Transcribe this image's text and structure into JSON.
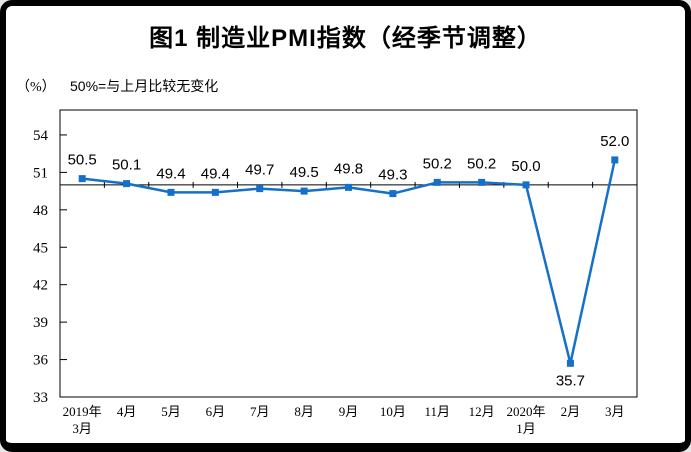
{
  "chart_data": {
    "type": "line",
    "title": "图1 制造业PMI指数（经季节调整）",
    "unit_label": "（%）",
    "subtitle": "50%=与上月比较无变化",
    "categories": [
      [
        "2019年",
        "3月"
      ],
      [
        "4月"
      ],
      [
        "5月"
      ],
      [
        "6月"
      ],
      [
        "7月"
      ],
      [
        "8月"
      ],
      [
        "9月"
      ],
      [
        "10月"
      ],
      [
        "11月"
      ],
      [
        "12月"
      ],
      [
        "2020年",
        "1月"
      ],
      [
        "2月"
      ],
      [
        "3月"
      ]
    ],
    "values": [
      50.5,
      50.1,
      49.4,
      49.4,
      49.7,
      49.5,
      49.8,
      49.3,
      50.2,
      50.2,
      50.0,
      35.7,
      52.0
    ],
    "yticks": [
      54,
      51,
      48,
      45,
      42,
      39,
      36,
      33
    ],
    "ylim": [
      33,
      56
    ],
    "reference_line": 50,
    "xlabel": "",
    "ylabel": "",
    "grid": false,
    "legend": false,
    "line_color": "#1470C8",
    "marker": "square",
    "axis_color": "#000000",
    "text_color": "#000000"
  }
}
